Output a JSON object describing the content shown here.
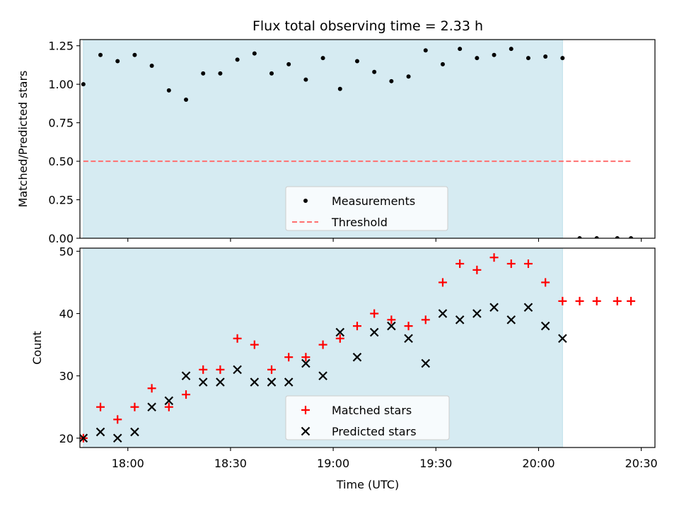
{
  "chart_data": {
    "type": "scatter",
    "title": "Flux total observing time = 2.33 h",
    "xlabel": "Time (UTC)",
    "x_tick_labels": [
      "18:00",
      "18:30",
      "19:00",
      "19:30",
      "20:00",
      "20:30"
    ],
    "x_tick_values": [
      "18:00",
      "18:30",
      "19:00",
      "19:30",
      "20:00",
      "20:30"
    ],
    "xlim": [
      "17:46",
      "20:34"
    ],
    "shaded_interval": [
      "17:47",
      "20:07"
    ],
    "panels": [
      {
        "ylabel": "Matched/Predicted stars",
        "ylim": [
          0,
          1.29
        ],
        "y_ticks": [
          "0.00",
          "0.25",
          "0.50",
          "0.75",
          "1.00",
          "1.25"
        ],
        "legend_position": "bottom-center",
        "series": [
          {
            "name": "Measurements",
            "marker": "dot",
            "color": "#000000",
            "x": [
              "17:47",
              "17:52",
              "17:57",
              "18:02",
              "18:07",
              "18:12",
              "18:17",
              "18:22",
              "18:27",
              "18:32",
              "18:37",
              "18:42",
              "18:47",
              "18:52",
              "18:57",
              "19:02",
              "19:07",
              "19:12",
              "19:17",
              "19:22",
              "19:27",
              "19:32",
              "19:37",
              "19:42",
              "19:47",
              "19:52",
              "19:57",
              "20:02",
              "20:07",
              "20:12",
              "20:17",
              "20:23",
              "20:27"
            ],
            "y": [
              1.0,
              1.19,
              1.15,
              1.19,
              1.12,
              0.96,
              0.9,
              1.07,
              1.07,
              1.16,
              1.2,
              1.07,
              1.13,
              1.03,
              1.17,
              0.97,
              1.15,
              1.08,
              1.02,
              1.05,
              1.22,
              1.13,
              1.23,
              1.17,
              1.19,
              1.23,
              1.17,
              1.18,
              1.17,
              0,
              0,
              0,
              0
            ]
          },
          {
            "name": "Threshold",
            "marker": "dashed-line",
            "color": "#ff6f6f",
            "x": [
              "17:47",
              "20:27"
            ],
            "y": [
              0.5,
              0.5
            ]
          }
        ]
      },
      {
        "ylabel": "Count",
        "ylim": [
          18.5,
          50.5
        ],
        "y_ticks": [
          "20",
          "30",
          "40",
          "50"
        ],
        "legend_position": "bottom-center",
        "series": [
          {
            "name": "Matched stars",
            "marker": "plus",
            "color": "#ff0000",
            "x": [
              "17:47",
              "17:52",
              "17:57",
              "18:02",
              "18:07",
              "18:12",
              "18:17",
              "18:22",
              "18:27",
              "18:32",
              "18:37",
              "18:42",
              "18:47",
              "18:52",
              "18:57",
              "19:02",
              "19:07",
              "19:12",
              "19:17",
              "19:22",
              "19:27",
              "19:32",
              "19:37",
              "19:42",
              "19:47",
              "19:52",
              "19:57",
              "20:02",
              "20:07",
              "20:12",
              "20:17",
              "20:23",
              "20:27"
            ],
            "y": [
              20,
              25,
              23,
              25,
              28,
              25,
              27,
              31,
              31,
              36,
              35,
              31,
              33,
              33,
              35,
              36,
              38,
              40,
              39,
              38,
              39,
              45,
              48,
              47,
              49,
              48,
              48,
              45,
              42,
              42,
              42,
              42,
              42
            ]
          },
          {
            "name": "Predicted stars",
            "marker": "x",
            "color": "#000000",
            "x": [
              "17:47",
              "17:52",
              "17:57",
              "18:02",
              "18:07",
              "18:12",
              "18:17",
              "18:22",
              "18:27",
              "18:32",
              "18:37",
              "18:42",
              "18:47",
              "18:52",
              "18:57",
              "19:02",
              "19:07",
              "19:12",
              "19:17",
              "19:22",
              "19:27",
              "19:32",
              "19:37",
              "19:42",
              "19:47",
              "19:52",
              "19:57",
              "20:02",
              "20:07"
            ],
            "y": [
              20,
              21,
              20,
              21,
              25,
              26,
              30,
              29,
              29,
              31,
              29,
              29,
              29,
              32,
              30,
              37,
              33,
              37,
              38,
              36,
              32,
              40,
              39,
              40,
              41,
              39,
              41,
              38,
              36
            ]
          }
        ]
      }
    ]
  },
  "colors": {
    "shade": "#add8e6",
    "threshold": "#ff6f6f",
    "matched": "#ff0000",
    "predicted": "#000000",
    "measurement": "#000000"
  }
}
